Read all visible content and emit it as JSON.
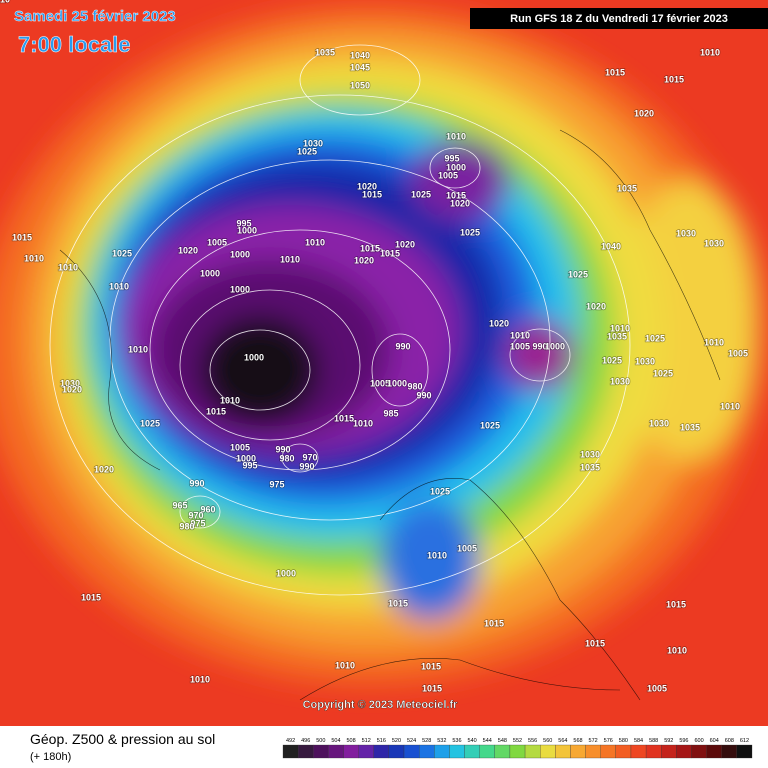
{
  "header": {
    "date": "Samedi 25 février 2023",
    "time": "7:00 locale",
    "run": "Run GFS 18 Z du Vendredi 17 février 2023"
  },
  "copyright": "Copyright © 2023 Meteociel.fr",
  "footer": {
    "title": "Géop. Z500 & pression au sol",
    "lead": "(+ 180h)"
  },
  "colorbar": {
    "ticks": [
      492,
      496,
      500,
      504,
      508,
      512,
      516,
      520,
      524,
      528,
      532,
      536,
      540,
      544,
      548,
      552,
      556,
      560,
      564,
      568,
      572,
      576,
      580,
      584,
      588,
      592,
      596,
      600,
      604,
      608,
      612
    ]
  },
  "isobar_labels": [
    1035,
    1040,
    1045,
    1050,
    1010,
    1015,
    1015,
    1020,
    1010,
    1030,
    1025,
    995,
    1000,
    1005,
    1035,
    1020,
    1015,
    1025,
    1015,
    1020,
    995,
    1000,
    1025,
    1015,
    1005,
    1010,
    1020,
    1015,
    1040,
    1030,
    1030,
    1010,
    1025,
    1020,
    1000,
    1020,
    1010,
    1015,
    1010,
    1000,
    1025,
    1010,
    1000,
    1020,
    1020,
    1010,
    1035,
    1025,
    1010,
    990,
    1005,
    990,
    1000,
    1010,
    1000,
    1010,
    1005,
    1025,
    1030,
    1025,
    1030,
    1005,
    1000,
    980,
    990,
    1030,
    1020,
    985,
    1010,
    1015,
    1015,
    1010,
    1025,
    1010,
    1030,
    1035,
    1025,
    1005,
    990,
    980,
    1000,
    995,
    970,
    990,
    1030,
    1035,
    1020,
    975,
    990,
    1025,
    965,
    960,
    970,
    975,
    980,
    1005,
    1010,
    1000,
    1015,
    1015,
    1015,
    1015,
    1015,
    1010,
    1010,
    1015,
    1010,
    1015,
    1005,
    1010
  ]
}
